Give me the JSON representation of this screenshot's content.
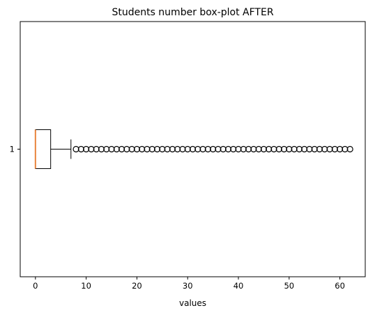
{
  "chart_data": {
    "type": "boxplot",
    "orientation": "horizontal",
    "title": "Students number box-plot AFTER",
    "xlabel": "values",
    "ylabel": "",
    "xlim": [
      -3,
      65
    ],
    "x_ticks": [
      0,
      10,
      20,
      30,
      40,
      50,
      60
    ],
    "y_ticks": [
      "1"
    ],
    "grid": false,
    "series": [
      {
        "category": "1",
        "whisker_low": 0,
        "q1": 0,
        "median": 0,
        "q3": 3,
        "whisker_high": 7,
        "outliers": [
          8,
          9,
          10,
          11,
          12,
          13,
          14,
          15,
          16,
          17,
          18,
          19,
          20,
          21,
          22,
          23,
          24,
          25,
          26,
          27,
          28,
          29,
          30,
          31,
          32,
          33,
          34,
          35,
          36,
          37,
          38,
          39,
          40,
          41,
          42,
          43,
          44,
          45,
          46,
          47,
          48,
          49,
          50,
          51,
          52,
          53,
          54,
          55,
          56,
          57,
          58,
          59,
          60,
          61,
          62
        ]
      }
    ],
    "colors": {
      "box": "#000000",
      "median": "#e8843c",
      "outlier": "#000000"
    }
  }
}
